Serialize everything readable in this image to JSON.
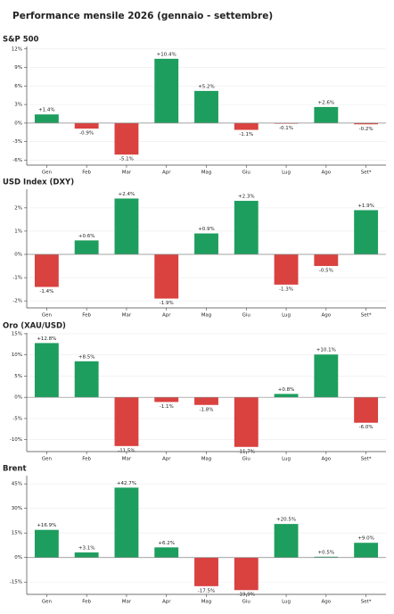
{
  "title": "Performance mensile 2026 (gennaio - settembre)",
  "chart_data": [
    {
      "type": "bar",
      "title": "S&P 500",
      "categories": [
        "Gen",
        "Feb",
        "Mar",
        "Apr",
        "Mag",
        "Giu",
        "Lug",
        "Ago",
        "Set*"
      ],
      "values": [
        1.4,
        -0.9,
        -5.1,
        10.4,
        5.2,
        -1.1,
        -0.1,
        2.6,
        -0.2
      ],
      "value_labels": [
        "+1.4%",
        "-0.9%",
        "-5.1%",
        "+10.4%",
        "+5.2%",
        "-1.1%",
        "-0.1%",
        "+2.6%",
        "-0.2%"
      ],
      "ylim": [
        -6.8,
        12.4
      ],
      "yticks": [
        {
          "value": -6,
          "label": "-6%"
        },
        {
          "value": -3,
          "label": "-3%"
        },
        {
          "value": 0,
          "label": "0%"
        },
        {
          "value": 3,
          "label": "3%"
        },
        {
          "value": 6,
          "label": "6%"
        },
        {
          "value": 9,
          "label": "9%"
        },
        {
          "value": 12,
          "label": "12%"
        }
      ],
      "positive_color": "#1e9e5e",
      "negative_color": "#d9423f",
      "grid": true
    },
    {
      "type": "bar",
      "title": "USD Index (DXY)",
      "categories": [
        "Gen",
        "Feb",
        "Mar",
        "Apr",
        "Mag",
        "Giu",
        "Lug",
        "Ago",
        "Set*"
      ],
      "values": [
        -1.4,
        0.6,
        2.4,
        -1.9,
        0.9,
        2.3,
        -1.3,
        -0.5,
        1.9
      ],
      "value_labels": [
        "-1.4%",
        "+0.6%",
        "+2.4%",
        "-1.9%",
        "+0.9%",
        "+2.3%",
        "-1.3%",
        "-0.5%",
        "+1.9%"
      ],
      "ylim": [
        -2.3,
        2.8
      ],
      "yticks": [
        {
          "value": -2,
          "label": "-2%"
        },
        {
          "value": -1,
          "label": "-1%"
        },
        {
          "value": 0,
          "label": "0%"
        },
        {
          "value": 1,
          "label": "1%"
        },
        {
          "value": 2,
          "label": "2%"
        }
      ],
      "positive_color": "#1e9e5e",
      "negative_color": "#d9423f",
      "grid": true
    },
    {
      "type": "bar",
      "title": "Oro (XAU/USD)",
      "categories": [
        "Gen",
        "Feb",
        "Mar",
        "Apr",
        "Mag",
        "Giu",
        "Lug",
        "Ago",
        "Set*"
      ],
      "values": [
        12.8,
        8.5,
        -11.5,
        -1.1,
        -1.8,
        -11.7,
        0.8,
        10.1,
        -6.0
      ],
      "value_labels": [
        "+12.8%",
        "+8.5%",
        "-11.5%",
        "-1.1%",
        "-1.8%",
        "-11.7%",
        "+0.8%",
        "+10.1%",
        "-6.0%"
      ],
      "ylim": [
        -12.8,
        15.2
      ],
      "yticks": [
        {
          "value": -10,
          "label": "-10%"
        },
        {
          "value": -5,
          "label": "-5%"
        },
        {
          "value": 0,
          "label": "0%"
        },
        {
          "value": 5,
          "label": "5%"
        },
        {
          "value": 10,
          "label": "10%"
        },
        {
          "value": 15,
          "label": "15%"
        }
      ],
      "positive_color": "#1e9e5e",
      "negative_color": "#d9423f",
      "grid": true
    },
    {
      "type": "bar",
      "title": "Brent",
      "categories": [
        "Gen",
        "Feb",
        "Mar",
        "Apr",
        "Mag",
        "Giu",
        "Lug",
        "Ago",
        "Set*"
      ],
      "values": [
        16.9,
        3.1,
        42.7,
        6.2,
        -17.5,
        -19.9,
        20.5,
        0.5,
        9.0
      ],
      "value_labels": [
        "+16.9%",
        "+3.1%",
        "+42.7%",
        "+6.2%",
        "-17.5%",
        "-19.9%",
        "+20.5%",
        "+0.5%",
        "+9.0%"
      ],
      "ylim": [
        -22.5,
        50
      ],
      "yticks": [
        {
          "value": -15,
          "label": "-15%"
        },
        {
          "value": 0,
          "label": "0%"
        },
        {
          "value": 15,
          "label": "15%"
        },
        {
          "value": 30,
          "label": "30%"
        },
        {
          "value": 45,
          "label": "45%"
        }
      ],
      "positive_color": "#1e9e5e",
      "negative_color": "#d9423f",
      "grid": true
    }
  ]
}
